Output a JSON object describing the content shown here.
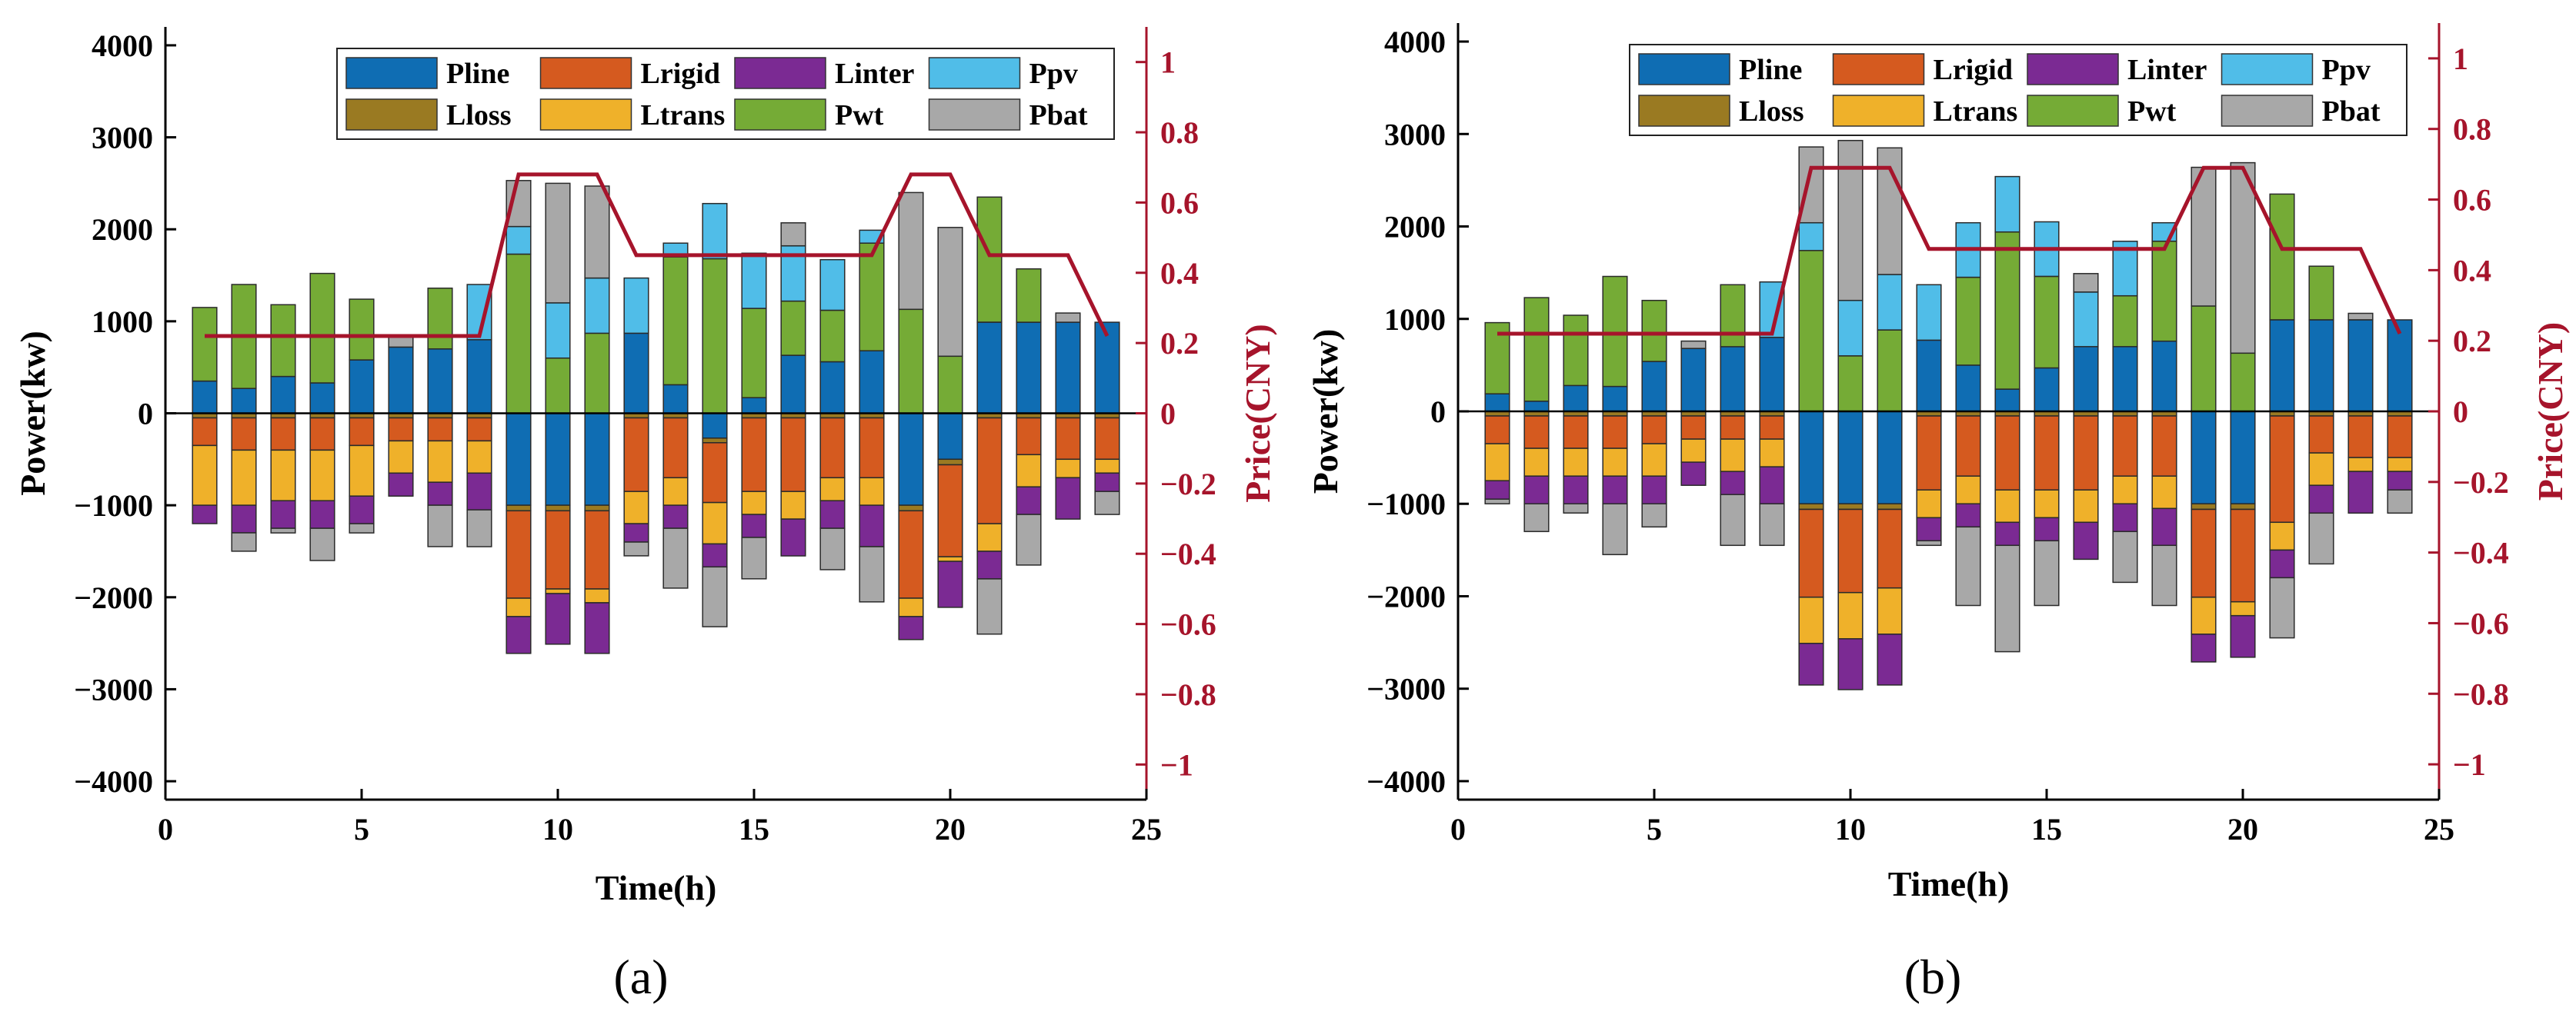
{
  "figure": {
    "panel_labels": [
      "(a)",
      "(b)"
    ]
  },
  "colors": {
    "Pline": "#0f6db3",
    "Lrigid": "#d55a1f",
    "Linter": "#7b2a93",
    "Ppv": "#50bde8",
    "Lloss": "#9a7a22",
    "Ltrans": "#efb12a",
    "Pwt": "#75ab36",
    "Pbat": "#a8a8a8",
    "price": "#a6142b",
    "axis": "#000000",
    "right_axis": "#a6142b"
  },
  "chart_data": [
    {
      "type": "bar",
      "stacked": true,
      "panel": "(a)",
      "xlabel": "Time(h)",
      "ylabel": "Power(kw)",
      "y2label": "Price(CNY)",
      "xlim": [
        0,
        25
      ],
      "ylim": [
        -4200,
        4200
      ],
      "y2lim": [
        -1.1,
        1.1
      ],
      "xticks": [
        0,
        5,
        10,
        15,
        20,
        25
      ],
      "yticks": [
        -4000,
        -3000,
        -2000,
        -1000,
        0,
        1000,
        2000,
        3000,
        4000
      ],
      "y2ticks": [
        -1,
        -0.8,
        -0.6,
        -0.4,
        -0.2,
        0,
        0.2,
        0.4,
        0.6,
        0.8,
        1
      ],
      "grid": false,
      "legend_position": "top-right",
      "legend": [
        "Pline",
        "Lrigid",
        "Linter",
        "Ppv",
        "Lloss",
        "Ltrans",
        "Pwt",
        "Pbat"
      ],
      "x": [
        1,
        2,
        3,
        4,
        5,
        6,
        7,
        8,
        9,
        10,
        11,
        12,
        13,
        14,
        15,
        16,
        17,
        18,
        19,
        20,
        21,
        22,
        23,
        24
      ],
      "series": [
        {
          "name": "Pline",
          "values": [
            350,
            270,
            400,
            330,
            580,
            720,
            700,
            800,
            -1000,
            -1000,
            -1000,
            870,
            310,
            -270,
            170,
            630,
            560,
            680,
            -1000,
            -500,
            990,
            990,
            990,
            990
          ]
        },
        {
          "name": "Pwt",
          "values": [
            800,
            1130,
            780,
            1190,
            660,
            0,
            660,
            0,
            1730,
            600,
            870,
            0,
            1390,
            1680,
            970,
            590,
            560,
            1170,
            1130,
            620,
            1360,
            580,
            0,
            0
          ]
        },
        {
          "name": "Ppv",
          "values": [
            0,
            0,
            0,
            0,
            0,
            0,
            0,
            600,
            300,
            600,
            600,
            600,
            150,
            600,
            600,
            600,
            550,
            140,
            0,
            0,
            0,
            0,
            0,
            0
          ]
        },
        {
          "name": "Pbat",
          "values": [
            0,
            0,
            0,
            0,
            0,
            130,
            0,
            0,
            500,
            1300,
            1000,
            0,
            0,
            0,
            0,
            250,
            0,
            0,
            1270,
            1400,
            0,
            0,
            100,
            0
          ]
        },
        {
          "name": "Lloss",
          "values": [
            -50,
            -50,
            -50,
            -50,
            -50,
            -50,
            -50,
            -50,
            -60,
            -60,
            -60,
            -50,
            -50,
            -50,
            -50,
            -50,
            -50,
            -50,
            -60,
            -60,
            -50,
            -50,
            -50,
            -50
          ]
        },
        {
          "name": "Lrigid",
          "values": [
            -300,
            -350,
            -350,
            -350,
            -300,
            -250,
            -250,
            -250,
            -950,
            -850,
            -850,
            -800,
            -650,
            -650,
            -800,
            -800,
            -650,
            -650,
            -950,
            -1000,
            -1150,
            -400,
            -450,
            -450
          ]
        },
        {
          "name": "Ltrans",
          "values": [
            -650,
            -600,
            -550,
            -550,
            -550,
            -350,
            -450,
            -350,
            -200,
            -50,
            -150,
            -350,
            -300,
            -450,
            -250,
            -300,
            -250,
            -300,
            -200,
            -50,
            -300,
            -350,
            -200,
            -150
          ]
        },
        {
          "name": "Linter",
          "values": [
            -200,
            -300,
            -300,
            -300,
            -300,
            -250,
            -250,
            -400,
            -400,
            -550,
            -550,
            -200,
            -250,
            -250,
            -250,
            -400,
            -300,
            -450,
            -250,
            -500,
            -300,
            -300,
            -450,
            -200
          ]
        },
        {
          "name": "Pbat",
          "values": [
            0,
            -200,
            -50,
            -350,
            -100,
            0,
            -450,
            -400,
            0,
            0,
            0,
            -150,
            -650,
            -650,
            -450,
            0,
            -450,
            -600,
            0,
            0,
            -600,
            -550,
            0,
            -250
          ]
        }
      ],
      "price": {
        "x": [
          1,
          8,
          9,
          10,
          11,
          12,
          18,
          19,
          20,
          21,
          23,
          24
        ],
        "values": [
          0.22,
          0.22,
          0.68,
          0.68,
          0.68,
          0.45,
          0.45,
          0.68,
          0.68,
          0.45,
          0.45,
          0.22
        ]
      }
    },
    {
      "type": "bar",
      "stacked": true,
      "panel": "(b)",
      "xlabel": "Time(h)",
      "ylabel": "Power(kw)",
      "y2label": "Price(CNY)",
      "xlim": [
        0,
        25
      ],
      "ylim": [
        -4200,
        4200
      ],
      "y2lim": [
        -1.1,
        1.1
      ],
      "xticks": [
        0,
        5,
        10,
        15,
        20,
        25
      ],
      "yticks": [
        -4000,
        -3000,
        -2000,
        -1000,
        0,
        1000,
        2000,
        3000,
        4000
      ],
      "y2ticks": [
        -1,
        -0.8,
        -0.6,
        -0.4,
        -0.2,
        0,
        0.2,
        0.4,
        0.6,
        0.8,
        1
      ],
      "grid": false,
      "legend_position": "top-right",
      "legend": [
        "Pline",
        "Lrigid",
        "Linter",
        "Ppv",
        "Lloss",
        "Ltrans",
        "Pwt",
        "Pbat"
      ],
      "x": [
        1,
        2,
        3,
        4,
        5,
        6,
        7,
        8,
        9,
        10,
        11,
        12,
        13,
        14,
        15,
        16,
        17,
        18,
        19,
        20,
        21,
        22,
        23,
        24
      ],
      "series": [
        {
          "name": "Pline",
          "values": [
            190,
            110,
            280,
            270,
            540,
            680,
            700,
            800,
            -1000,
            -1000,
            -1000,
            770,
            500,
            240,
            470,
            700,
            700,
            760,
            -1000,
            -1000,
            990,
            990,
            990,
            990
          ]
        },
        {
          "name": "Pwt",
          "values": [
            770,
            1120,
            760,
            1190,
            660,
            0,
            670,
            0,
            1740,
            600,
            880,
            0,
            950,
            1700,
            990,
            0,
            550,
            1080,
            1140,
            630,
            1360,
            580,
            0,
            0
          ]
        },
        {
          "name": "Ppv",
          "values": [
            0,
            0,
            0,
            0,
            0,
            0,
            0,
            600,
            300,
            600,
            600,
            600,
            590,
            600,
            590,
            590,
            590,
            200,
            0,
            0,
            0,
            0,
            0,
            0
          ]
        },
        {
          "name": "Pbat",
          "values": [
            0,
            0,
            0,
            0,
            0,
            80,
            0,
            0,
            820,
            1730,
            1370,
            0,
            0,
            0,
            0,
            200,
            0,
            0,
            1500,
            2060,
            0,
            0,
            70,
            0
          ]
        },
        {
          "name": "Lloss",
          "values": [
            -50,
            -50,
            -50,
            -50,
            -50,
            -50,
            -50,
            -50,
            -60,
            -60,
            -60,
            -50,
            -50,
            -50,
            -50,
            -50,
            -50,
            -50,
            -60,
            -60,
            -50,
            -50,
            -50,
            -50
          ]
        },
        {
          "name": "Lrigid",
          "values": [
            -300,
            -350,
            -350,
            -350,
            -300,
            -250,
            -250,
            -250,
            -950,
            -900,
            -850,
            -800,
            -650,
            -800,
            -800,
            -800,
            -650,
            -650,
            -950,
            -1000,
            -1150,
            -400,
            -450,
            -450
          ]
        },
        {
          "name": "Ltrans",
          "values": [
            -400,
            -300,
            -300,
            -300,
            -350,
            -250,
            -350,
            -300,
            -500,
            -500,
            -500,
            -300,
            -300,
            -350,
            -300,
            -350,
            -300,
            -350,
            -400,
            -150,
            -300,
            -350,
            -150,
            -150
          ]
        },
        {
          "name": "Linter",
          "values": [
            -200,
            -300,
            -300,
            -300,
            -300,
            -250,
            -250,
            -400,
            -450,
            -550,
            -550,
            -250,
            -250,
            -250,
            -250,
            -400,
            -300,
            -400,
            -300,
            -450,
            -300,
            -300,
            -450,
            -200
          ]
        },
        {
          "name": "Pbat",
          "values": [
            -50,
            -300,
            -100,
            -550,
            -250,
            0,
            -550,
            -450,
            0,
            0,
            0,
            -50,
            -850,
            -1150,
            -700,
            0,
            -550,
            -650,
            0,
            0,
            -650,
            -550,
            0,
            -250
          ]
        }
      ],
      "price": {
        "x": [
          1,
          8,
          9,
          10,
          11,
          12,
          18,
          19,
          20,
          21,
          23,
          24
        ],
        "values": [
          0.22,
          0.22,
          0.69,
          0.69,
          0.69,
          0.46,
          0.46,
          0.69,
          0.69,
          0.46,
          0.46,
          0.22
        ]
      }
    }
  ]
}
